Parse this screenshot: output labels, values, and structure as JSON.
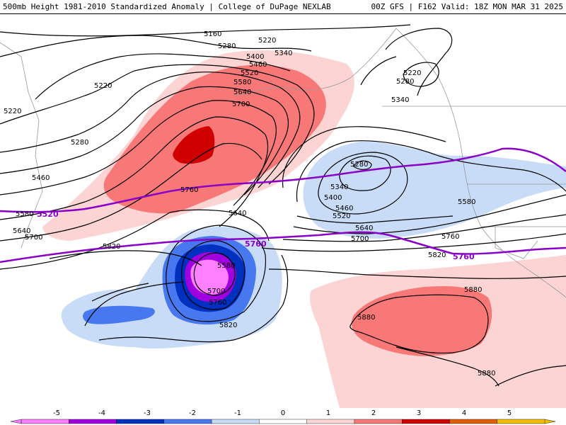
{
  "header": {
    "title_left": "500mb Height 1981-2010 Standardized Anomaly | College of DuPage NEXLAB",
    "title_right": "00Z GFS | F162 Valid: 18Z MON MAR 31 2025"
  },
  "colors": {
    "neg5": "#ff80ff",
    "neg4": "#a000e0",
    "neg3": "#0030c0",
    "neg2": "#4878f0",
    "neg1": "#c8dcf8",
    "pos1": "#fcd4d4",
    "pos2": "#f87878",
    "pos3": "#d00000",
    "pos4": "#e06000",
    "pos5": "#f0c000",
    "highlight_contour": "#8a00c8",
    "coastline": "#999999"
  },
  "contour_labels": [
    {
      "id": "c5160",
      "text": "5160"
    },
    {
      "id": "c5220a",
      "text": "5220"
    },
    {
      "id": "c5280a",
      "text": "5280"
    },
    {
      "id": "c5340a",
      "text": "5340"
    },
    {
      "id": "c5400a",
      "text": "5400"
    },
    {
      "id": "c5460a",
      "text": "5460"
    },
    {
      "id": "c5520a",
      "text": "5520"
    },
    {
      "id": "c5580a",
      "text": "5580"
    },
    {
      "id": "c5640a",
      "text": "5640"
    },
    {
      "id": "c5700a",
      "text": "5700"
    },
    {
      "id": "c5220b",
      "text": "5220"
    },
    {
      "id": "c5220c",
      "text": "5220"
    },
    {
      "id": "c5280b",
      "text": "5280"
    },
    {
      "id": "c5460b",
      "text": "5460"
    },
    {
      "id": "c5580b",
      "text": "5580"
    },
    {
      "id": "c5640b",
      "text": "5640"
    },
    {
      "id": "c5700b",
      "text": "5700"
    },
    {
      "id": "c5760a",
      "text": "5760"
    },
    {
      "id": "c5820a",
      "text": "5820"
    },
    {
      "id": "c5220d",
      "text": "5220"
    },
    {
      "id": "c5280c",
      "text": "5280"
    },
    {
      "id": "c5340b",
      "text": "5340"
    },
    {
      "id": "c5280d",
      "text": "5280"
    },
    {
      "id": "c5340c",
      "text": "5340"
    },
    {
      "id": "c5400b",
      "text": "5400"
    },
    {
      "id": "c5460c",
      "text": "5460"
    },
    {
      "id": "c5520b",
      "text": "5520"
    },
    {
      "id": "c5640c",
      "text": "5640"
    },
    {
      "id": "c5700c",
      "text": "5700"
    },
    {
      "id": "c5580c",
      "text": "5580"
    },
    {
      "id": "c5760b",
      "text": "5760"
    },
    {
      "id": "c5820b",
      "text": "5820"
    },
    {
      "id": "c5640d",
      "text": "5640"
    },
    {
      "id": "c5580d",
      "text": "5580"
    },
    {
      "id": "c5700d",
      "text": "5700"
    },
    {
      "id": "c5760c",
      "text": "5760"
    },
    {
      "id": "c5820c",
      "text": "5820"
    },
    {
      "id": "c5880a",
      "text": "5880"
    },
    {
      "id": "c5880b",
      "text": "5880"
    },
    {
      "id": "c5880c",
      "text": "5880"
    }
  ],
  "highlight_labels": [
    {
      "id": "h5520",
      "text": "5520"
    },
    {
      "id": "h5760a",
      "text": "5760"
    },
    {
      "id": "h5760b",
      "text": "5760"
    }
  ],
  "colorbar": {
    "ticks": [
      "-5",
      "-4",
      "-3",
      "-2",
      "-1",
      "0",
      "1",
      "2",
      "3",
      "4",
      "5"
    ]
  }
}
